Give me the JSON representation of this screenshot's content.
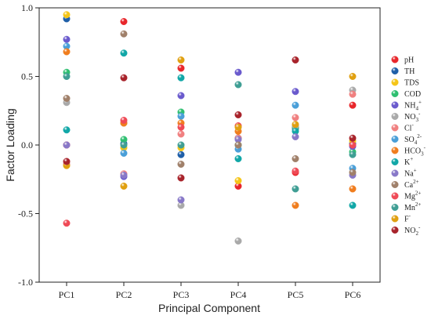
{
  "chart_data": {
    "type": "scatter",
    "xlabel": "Principal Component",
    "ylabel": "Factor Loading",
    "ylim": [
      -1.0,
      1.0
    ],
    "yticks": [
      "-1.0",
      "-0.5",
      "0.0",
      "0.5",
      "1.0"
    ],
    "categories": [
      "PC1",
      "PC2",
      "PC3",
      "PC4",
      "PC5",
      "PC6"
    ],
    "legend_position": "right",
    "series": [
      {
        "name": "pH",
        "sub": "",
        "sup": "",
        "color": "#e8262b",
        "values": [
          0.0,
          0.9,
          0.56,
          -0.3,
          -0.2,
          0.29
        ]
      },
      {
        "name": "TH",
        "sub": "",
        "sup": "",
        "color": "#1f5fa8",
        "values": [
          0.92,
          0.01,
          -0.07,
          0.05,
          0.12,
          0.01
        ]
      },
      {
        "name": "TDS",
        "sub": "",
        "sup": "",
        "color": "#f5c518",
        "values": [
          0.95,
          -0.02,
          -0.02,
          -0.26,
          0.13,
          0.03
        ]
      },
      {
        "name": "COD",
        "sub": "",
        "sup": "",
        "color": "#2fbf71",
        "values": [
          0.53,
          0.04,
          0.24,
          0.0,
          0.13,
          -0.05
        ]
      },
      {
        "name": "NH",
        "sub": "4",
        "sup": "+",
        "color": "#6a5acd",
        "values": [
          0.77,
          -0.23,
          0.36,
          0.53,
          0.39,
          -0.01
        ]
      },
      {
        "name": "NO",
        "sub": "3",
        "sup": "-",
        "color": "#a9a9a9",
        "values": [
          0.31,
          0.16,
          -0.44,
          -0.7,
          0.14,
          0.4
        ]
      },
      {
        "name": "Cl",
        "sub": "",
        "sup": "-",
        "color": "#f08080",
        "values": [
          -0.14,
          -0.21,
          0.08,
          0.05,
          0.2,
          0.37
        ]
      },
      {
        "name": "SO",
        "sub": "4",
        "sup": "2-",
        "color": "#4a9fd8",
        "values": [
          0.72,
          -0.06,
          0.21,
          -0.03,
          0.29,
          -0.17
        ]
      },
      {
        "name": "HCO",
        "sub": "3",
        "sup": "-",
        "color": "#f07d1e",
        "values": [
          0.68,
          0.16,
          0.16,
          0.1,
          -0.44,
          -0.32
        ]
      },
      {
        "name": "K",
        "sub": "",
        "sup": "+",
        "color": "#11a7a7",
        "values": [
          0.11,
          0.67,
          0.49,
          -0.1,
          0.1,
          -0.44
        ]
      },
      {
        "name": "Na",
        "sub": "",
        "sup": "+",
        "color": "#8878c8",
        "values": [
          0.0,
          -0.22,
          -0.4,
          0.04,
          0.06,
          -0.22
        ]
      },
      {
        "name": "Ca",
        "sub": "",
        "sup": "2+",
        "color": "#a0806a",
        "values": [
          0.34,
          0.81,
          -0.14,
          0.0,
          -0.1,
          -0.2
        ]
      },
      {
        "name": "Mg",
        "sub": "",
        "sup": "2+",
        "color": "#ef4a56",
        "values": [
          -0.57,
          0.18,
          0.13,
          0.14,
          -0.19,
          0.0
        ]
      },
      {
        "name": "Mn",
        "sub": "",
        "sup": "2+",
        "color": "#3f9e94",
        "values": [
          0.5,
          0.0,
          0.0,
          0.44,
          -0.32,
          -0.07
        ]
      },
      {
        "name": "F",
        "sub": "",
        "sup": "-",
        "color": "#e0a010",
        "values": [
          -0.15,
          -0.3,
          0.62,
          0.13,
          0.15,
          0.5
        ]
      },
      {
        "name": "NO",
        "sub": "2",
        "sup": "-",
        "color": "#a8232b",
        "values": [
          -0.12,
          0.49,
          -0.24,
          0.22,
          0.62,
          0.05
        ]
      }
    ]
  }
}
